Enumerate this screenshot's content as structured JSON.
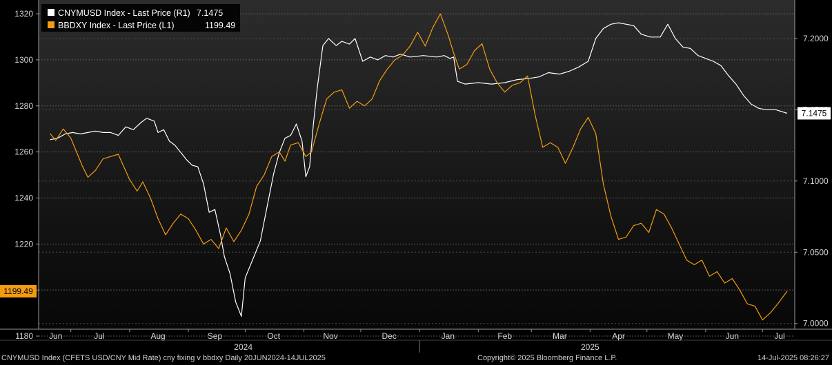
{
  "chart_data": {
    "type": "line",
    "date_range": [
      "2024-06-20",
      "2025-07-14"
    ],
    "legend": {
      "placement": "top-left",
      "entries": [
        {
          "label": "CNYMUSD Index - Last Price (R1)",
          "value": "7.1475",
          "color": "#ffffff",
          "axis": "right"
        },
        {
          "label": "BBDXY Index - Last Price (L1)",
          "value": "1199.49",
          "color": "#f39c12",
          "axis": "left"
        }
      ]
    },
    "left_axis": {
      "range": [
        1183,
        1326
      ],
      "ticks": [
        "1180",
        "1200",
        "1220",
        "1240",
        "1260",
        "1280",
        "1300",
        "1320"
      ],
      "tick_values": [
        1180,
        1200,
        1220,
        1240,
        1260,
        1280,
        1300,
        1320
      ],
      "last_label": "1199.49",
      "last_value": 1199.49,
      "label_color": "#f39c12"
    },
    "right_axis": {
      "range": [
        6.996,
        7.227
      ],
      "ticks": [
        "7.0000",
        "7.0500",
        "7.1000",
        "7.1500",
        "7.2000"
      ],
      "tick_values": [
        7.0,
        7.05,
        7.1,
        7.15,
        7.2
      ],
      "last_label": "7.1475",
      "last_value": 7.1475,
      "label_color": "#ffffff"
    },
    "x_axis": {
      "months": [
        {
          "label": "Jun",
          "date": "2024-06-23"
        },
        {
          "label": "Jul",
          "date": "2024-07-16"
        },
        {
          "label": "Aug",
          "date": "2024-08-16"
        },
        {
          "label": "Sep",
          "date": "2024-09-15"
        },
        {
          "label": "Oct",
          "date": "2024-10-16"
        },
        {
          "label": "Nov",
          "date": "2024-11-15"
        },
        {
          "label": "Dec",
          "date": "2024-12-16"
        },
        {
          "label": "Jan",
          "date": "2025-01-16"
        },
        {
          "label": "Feb",
          "date": "2025-02-15"
        },
        {
          "label": "Mar",
          "date": "2025-03-16"
        },
        {
          "label": "Apr",
          "date": "2025-04-16"
        },
        {
          "label": "May",
          "date": "2025-05-16"
        },
        {
          "label": "Jun",
          "date": "2025-06-15"
        },
        {
          "label": "Jul",
          "date": "2025-07-10"
        }
      ],
      "years": [
        {
          "label": "2024",
          "date": "2024-09-30"
        },
        {
          "label": "2025",
          "date": "2025-04-01"
        }
      ],
      "year_boundary": "2025-01-01"
    },
    "grid": "dashed-horizontal",
    "series": [
      {
        "name": "CNYMUSD Index - Last Price (R1)",
        "axis": "right",
        "color": "#ffffff",
        "points": [
          [
            "2024-06-20",
            7.129
          ],
          [
            "2024-06-24",
            7.13
          ],
          [
            "2024-06-28",
            7.133
          ],
          [
            "2024-07-02",
            7.134
          ],
          [
            "2024-07-06",
            7.133
          ],
          [
            "2024-07-10",
            7.134
          ],
          [
            "2024-07-14",
            7.135
          ],
          [
            "2024-07-18",
            7.134
          ],
          [
            "2024-07-22",
            7.134
          ],
          [
            "2024-07-26",
            7.132
          ],
          [
            "2024-07-30",
            7.138
          ],
          [
            "2024-08-03",
            7.136
          ],
          [
            "2024-08-07",
            7.141
          ],
          [
            "2024-08-10",
            7.144
          ],
          [
            "2024-08-14",
            7.142
          ],
          [
            "2024-08-16",
            7.134
          ],
          [
            "2024-08-19",
            7.136
          ],
          [
            "2024-08-22",
            7.128
          ],
          [
            "2024-08-25",
            7.125
          ],
          [
            "2024-08-28",
            7.12
          ],
          [
            "2024-08-31",
            7.115
          ],
          [
            "2024-09-03",
            7.111
          ],
          [
            "2024-09-06",
            7.11
          ],
          [
            "2024-09-09",
            7.098
          ],
          [
            "2024-09-12",
            7.078
          ],
          [
            "2024-09-15",
            7.08
          ],
          [
            "2024-09-18",
            7.062
          ],
          [
            "2024-09-20",
            7.047
          ],
          [
            "2024-09-23",
            7.035
          ],
          [
            "2024-09-26",
            7.015
          ],
          [
            "2024-09-29",
            7.005
          ],
          [
            "2024-10-01",
            7.032
          ],
          [
            "2024-10-05",
            7.045
          ],
          [
            "2024-10-09",
            7.058
          ],
          [
            "2024-10-13",
            7.085
          ],
          [
            "2024-10-16",
            7.105
          ],
          [
            "2024-10-19",
            7.12
          ],
          [
            "2024-10-22",
            7.13
          ],
          [
            "2024-10-25",
            7.132
          ],
          [
            "2024-10-28",
            7.14
          ],
          [
            "2024-10-31",
            7.128
          ],
          [
            "2024-11-02",
            7.103
          ],
          [
            "2024-11-04",
            7.11
          ],
          [
            "2024-11-06",
            7.14
          ],
          [
            "2024-11-08",
            7.165
          ],
          [
            "2024-11-11",
            7.195
          ],
          [
            "2024-11-14",
            7.2
          ],
          [
            "2024-11-18",
            7.195
          ],
          [
            "2024-11-21",
            7.198
          ],
          [
            "2024-11-25",
            7.196
          ],
          [
            "2024-11-28",
            7.2
          ],
          [
            "2024-12-02",
            7.184
          ],
          [
            "2024-12-06",
            7.187
          ],
          [
            "2024-12-10",
            7.185
          ],
          [
            "2024-12-14",
            7.188
          ],
          [
            "2024-12-18",
            7.187
          ],
          [
            "2024-12-22",
            7.189
          ],
          [
            "2024-12-27",
            7.187
          ],
          [
            "2025-01-03",
            7.188
          ],
          [
            "2025-01-10",
            7.187
          ],
          [
            "2025-01-14",
            7.188
          ],
          [
            "2025-01-17",
            7.186
          ],
          [
            "2025-01-19",
            7.187
          ],
          [
            "2025-01-21",
            7.17
          ],
          [
            "2025-01-25",
            7.168
          ],
          [
            "2025-02-01",
            7.169
          ],
          [
            "2025-02-08",
            7.168
          ],
          [
            "2025-02-15",
            7.169
          ],
          [
            "2025-02-21",
            7.171
          ],
          [
            "2025-02-28",
            7.172
          ],
          [
            "2025-03-05",
            7.173
          ],
          [
            "2025-03-10",
            7.176
          ],
          [
            "2025-03-16",
            7.175
          ],
          [
            "2025-03-21",
            7.177
          ],
          [
            "2025-03-26",
            7.18
          ],
          [
            "2025-03-31",
            7.184
          ],
          [
            "2025-04-04",
            7.2
          ],
          [
            "2025-04-08",
            7.207
          ],
          [
            "2025-04-12",
            7.21
          ],
          [
            "2025-04-16",
            7.211
          ],
          [
            "2025-04-20",
            7.21
          ],
          [
            "2025-04-24",
            7.209
          ],
          [
            "2025-04-28",
            7.203
          ],
          [
            "2025-05-03",
            7.201
          ],
          [
            "2025-05-08",
            7.201
          ],
          [
            "2025-05-12",
            7.21
          ],
          [
            "2025-05-16",
            7.2
          ],
          [
            "2025-05-20",
            7.194
          ],
          [
            "2025-05-24",
            7.193
          ],
          [
            "2025-05-28",
            7.188
          ],
          [
            "2025-06-01",
            7.186
          ],
          [
            "2025-06-05",
            7.184
          ],
          [
            "2025-06-09",
            7.181
          ],
          [
            "2025-06-13",
            7.174
          ],
          [
            "2025-06-17",
            7.168
          ],
          [
            "2025-06-21",
            7.16
          ],
          [
            "2025-06-25",
            7.154
          ],
          [
            "2025-06-29",
            7.151
          ],
          [
            "2025-07-03",
            7.15
          ],
          [
            "2025-07-08",
            7.15
          ],
          [
            "2025-07-14",
            7.1475
          ]
        ]
      },
      {
        "name": "BBDXY Index - Last Price (L1)",
        "axis": "left",
        "color": "#f39c12",
        "points": [
          [
            "2024-06-20",
            1268
          ],
          [
            "2024-06-23",
            1265
          ],
          [
            "2024-06-27",
            1270
          ],
          [
            "2024-07-01",
            1266
          ],
          [
            "2024-07-04",
            1260
          ],
          [
            "2024-07-07",
            1254
          ],
          [
            "2024-07-10",
            1249
          ],
          [
            "2024-07-14",
            1252
          ],
          [
            "2024-07-18",
            1257
          ],
          [
            "2024-07-22",
            1258
          ],
          [
            "2024-07-26",
            1259
          ],
          [
            "2024-08-01",
            1248
          ],
          [
            "2024-08-05",
            1243
          ],
          [
            "2024-08-08",
            1247
          ],
          [
            "2024-08-12",
            1240
          ],
          [
            "2024-08-16",
            1231
          ],
          [
            "2024-08-20",
            1224
          ],
          [
            "2024-08-24",
            1229
          ],
          [
            "2024-08-28",
            1233
          ],
          [
            "2024-09-01",
            1231
          ],
          [
            "2024-09-05",
            1226
          ],
          [
            "2024-09-09",
            1220
          ],
          [
            "2024-09-13",
            1222
          ],
          [
            "2024-09-17",
            1218
          ],
          [
            "2024-09-21",
            1227
          ],
          [
            "2024-09-25",
            1221
          ],
          [
            "2024-09-29",
            1226
          ],
          [
            "2024-10-03",
            1233
          ],
          [
            "2024-10-07",
            1245
          ],
          [
            "2024-10-11",
            1250
          ],
          [
            "2024-10-15",
            1258
          ],
          [
            "2024-10-19",
            1260
          ],
          [
            "2024-10-22",
            1256
          ],
          [
            "2024-10-25",
            1263
          ],
          [
            "2024-10-29",
            1264
          ],
          [
            "2024-11-02",
            1258
          ],
          [
            "2024-11-05",
            1260
          ],
          [
            "2024-11-09",
            1272
          ],
          [
            "2024-11-13",
            1283
          ],
          [
            "2024-11-17",
            1286
          ],
          [
            "2024-11-21",
            1287
          ],
          [
            "2024-11-25",
            1279
          ],
          [
            "2024-11-29",
            1282
          ],
          [
            "2024-12-03",
            1280
          ],
          [
            "2024-12-07",
            1283
          ],
          [
            "2024-12-11",
            1291
          ],
          [
            "2024-12-15",
            1296
          ],
          [
            "2024-12-19",
            1300
          ],
          [
            "2024-12-23",
            1302
          ],
          [
            "2024-12-27",
            1306
          ],
          [
            "2024-12-31",
            1312
          ],
          [
            "2025-01-04",
            1306
          ],
          [
            "2025-01-08",
            1314
          ],
          [
            "2025-01-12",
            1320
          ],
          [
            "2025-01-16",
            1311
          ],
          [
            "2025-01-19",
            1303
          ],
          [
            "2025-01-22",
            1296
          ],
          [
            "2025-01-26",
            1298
          ],
          [
            "2025-01-30",
            1304
          ],
          [
            "2025-02-03",
            1307
          ],
          [
            "2025-02-07",
            1296
          ],
          [
            "2025-02-11",
            1290
          ],
          [
            "2025-02-15",
            1286
          ],
          [
            "2025-02-19",
            1289
          ],
          [
            "2025-02-23",
            1290
          ],
          [
            "2025-02-27",
            1293
          ],
          [
            "2025-03-03",
            1276
          ],
          [
            "2025-03-07",
            1262
          ],
          [
            "2025-03-11",
            1264
          ],
          [
            "2025-03-15",
            1262
          ],
          [
            "2025-03-19",
            1255
          ],
          [
            "2025-03-23",
            1262
          ],
          [
            "2025-03-27",
            1270
          ],
          [
            "2025-03-31",
            1275
          ],
          [
            "2025-04-04",
            1268
          ],
          [
            "2025-04-08",
            1246
          ],
          [
            "2025-04-12",
            1232
          ],
          [
            "2025-04-16",
            1222
          ],
          [
            "2025-04-20",
            1223
          ],
          [
            "2025-04-24",
            1228
          ],
          [
            "2025-04-28",
            1229
          ],
          [
            "2025-05-02",
            1225
          ],
          [
            "2025-05-06",
            1235
          ],
          [
            "2025-05-10",
            1233
          ],
          [
            "2025-05-14",
            1227
          ],
          [
            "2025-05-18",
            1220
          ],
          [
            "2025-05-22",
            1213
          ],
          [
            "2025-05-26",
            1211
          ],
          [
            "2025-05-30",
            1213
          ],
          [
            "2025-06-03",
            1206
          ],
          [
            "2025-06-07",
            1208
          ],
          [
            "2025-06-11",
            1203
          ],
          [
            "2025-06-15",
            1205
          ],
          [
            "2025-06-19",
            1200
          ],
          [
            "2025-06-23",
            1194
          ],
          [
            "2025-06-27",
            1193
          ],
          [
            "2025-07-01",
            1187
          ],
          [
            "2025-07-05",
            1190
          ],
          [
            "2025-07-09",
            1194
          ],
          [
            "2025-07-14",
            1199.49
          ]
        ]
      }
    ],
    "footer": {
      "left": "CNYMUSD Index (CFETS USD/CNY Mid Rate) cny fixing v bbdxy  Daily 20JUN2024-14JUL2025",
      "middle": "Copyright© 2025 Bloomberg Finance L.P.",
      "right": "14-Jul-2025 08:26:27"
    }
  }
}
